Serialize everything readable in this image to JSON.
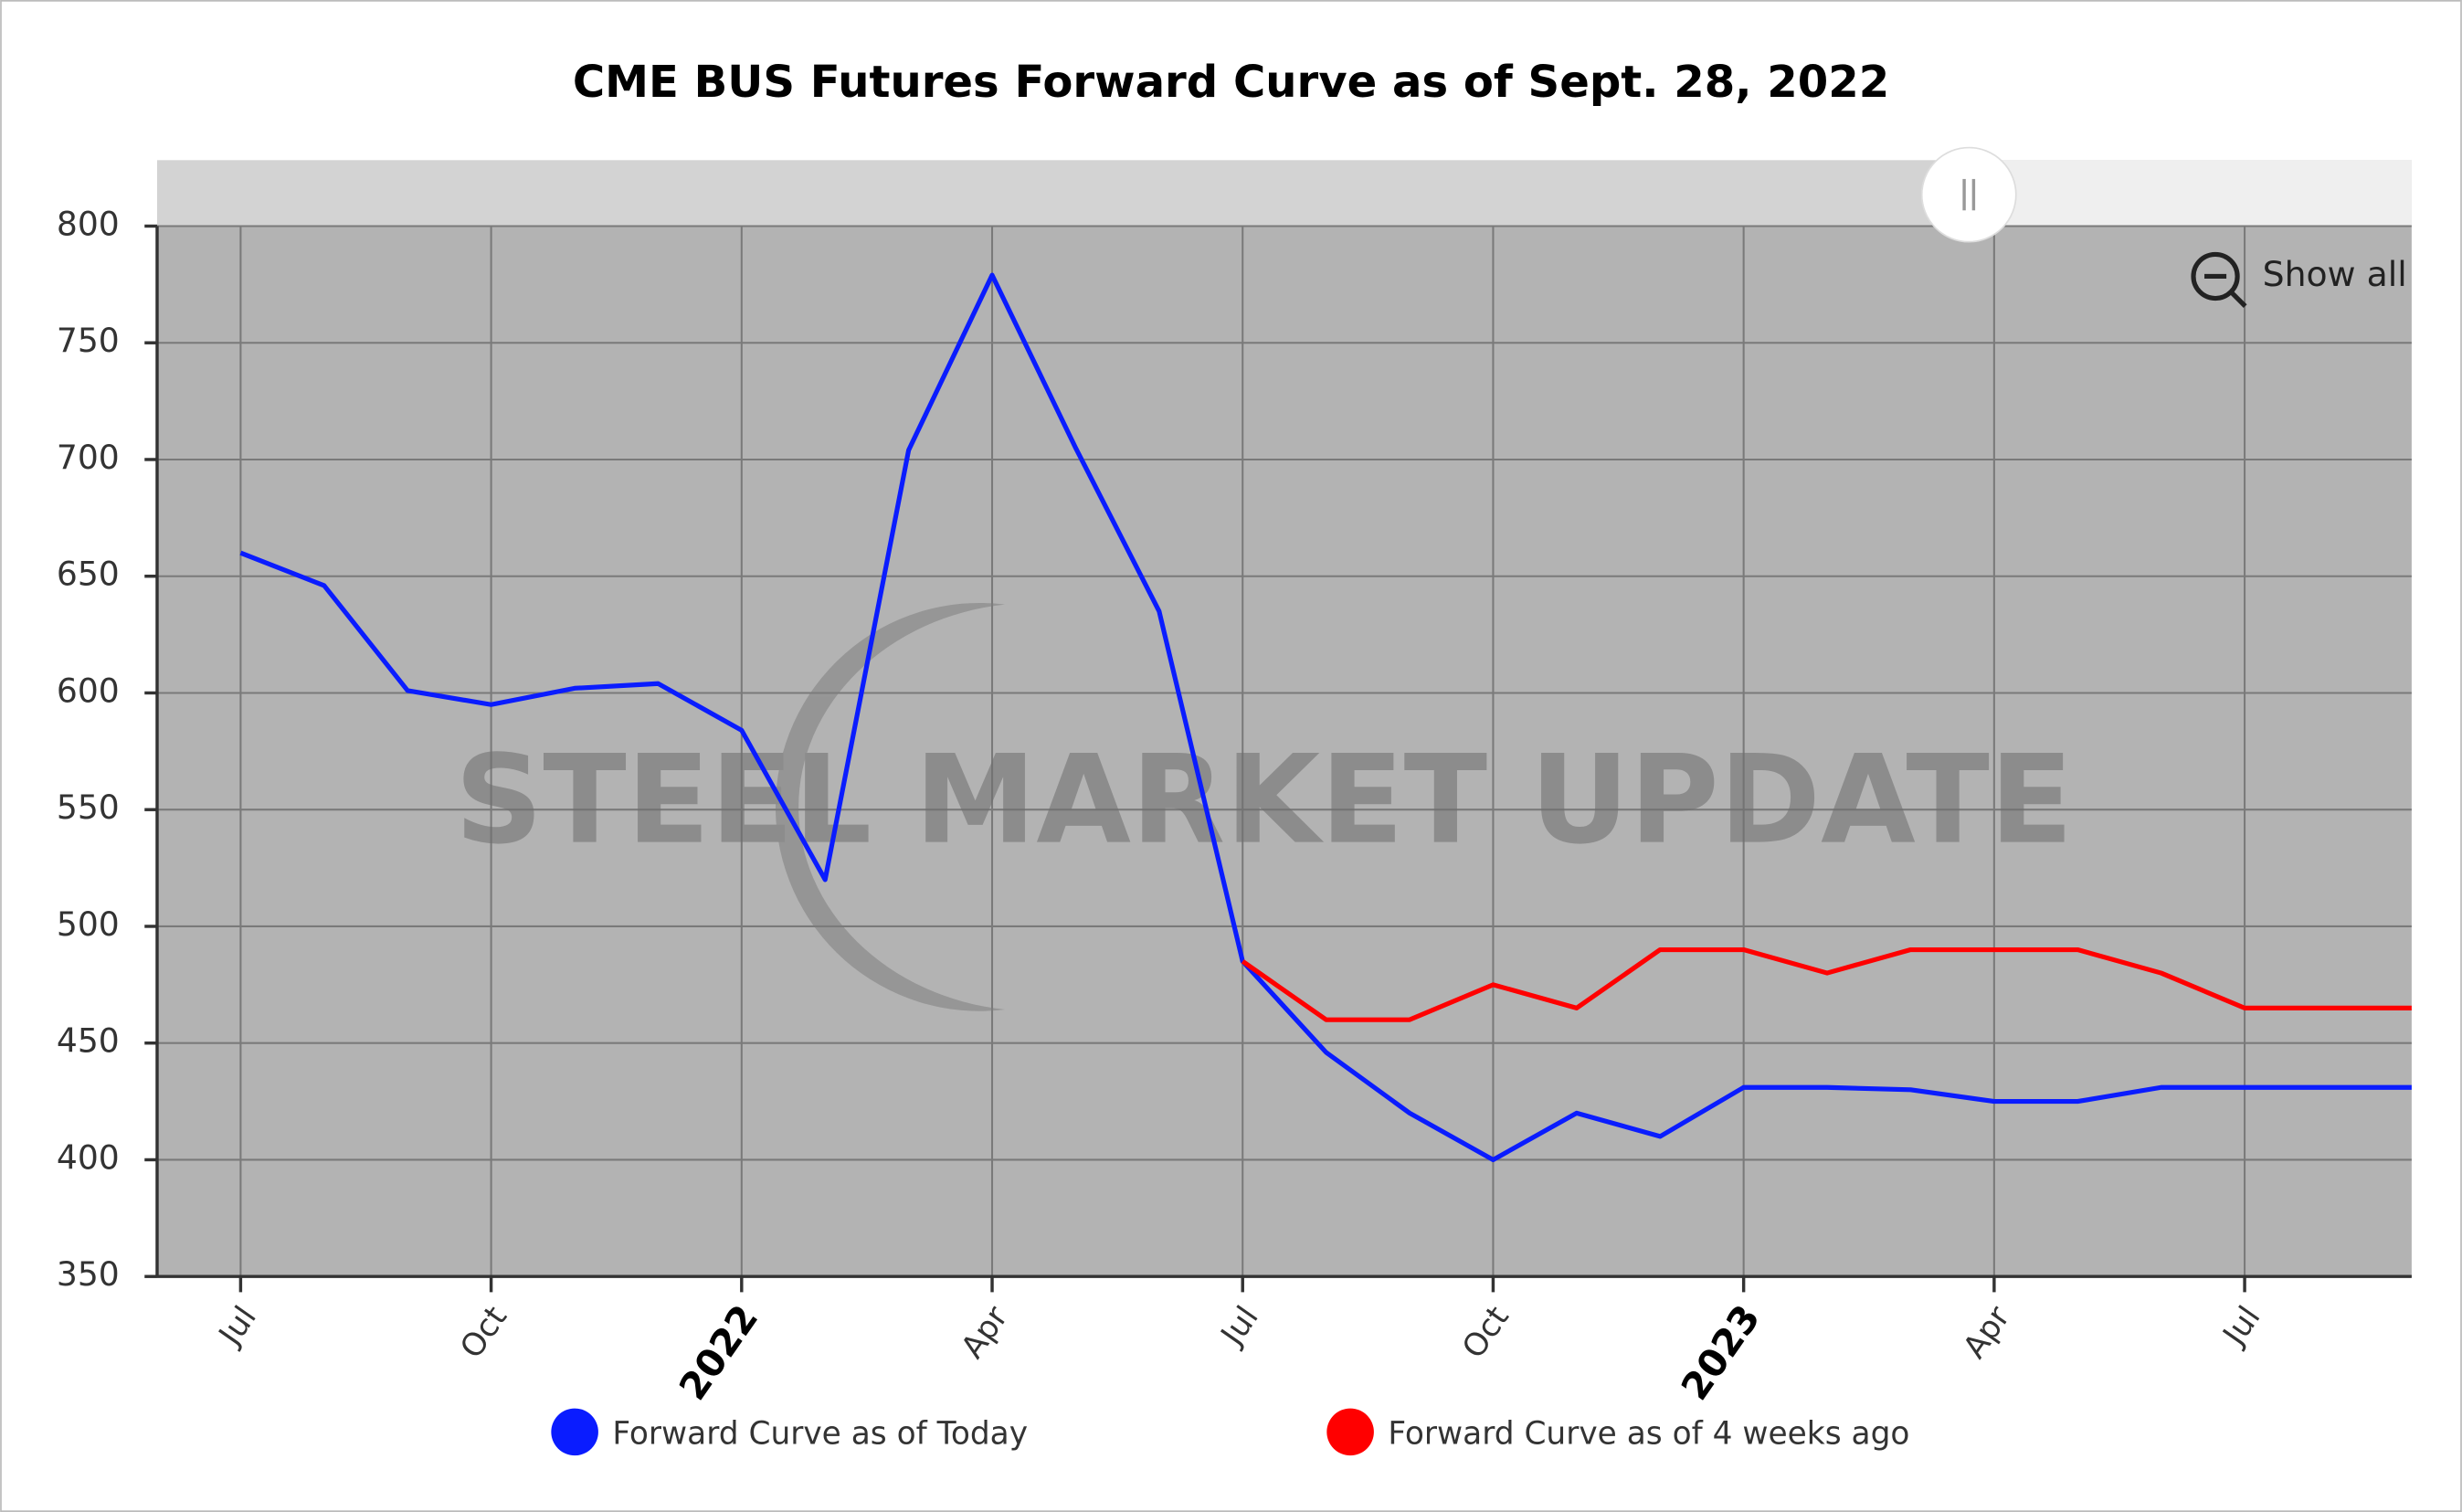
{
  "chart_data": {
    "type": "line",
    "title": "CME BUS Futures Forward Curve as of Sept. 28, 2022",
    "watermark": "STEEL MARKET UPDATE",
    "show_all_label": "Show all",
    "x": [
      "2021-07",
      "2021-08",
      "2021-09",
      "2021-10",
      "2021-11",
      "2021-12",
      "2022-01",
      "2022-02",
      "2022-03",
      "2022-04",
      "2022-05",
      "2022-06",
      "2022-07",
      "2022-08",
      "2022-09",
      "2022-10",
      "2022-11",
      "2022-12",
      "2023-01",
      "2023-02",
      "2023-03",
      "2023-04",
      "2023-05",
      "2023-06",
      "2023-07",
      "2023-08",
      "2023-09"
    ],
    "series": [
      {
        "name": "Forward Curve as of Today",
        "color": "#0a1cff",
        "values": [
          660,
          646,
          601,
          595,
          602,
          604,
          584,
          520,
          704,
          779,
          705,
          635,
          485,
          446,
          420,
          400,
          420,
          410,
          431,
          431,
          430,
          425,
          425,
          431,
          431,
          431,
          431
        ]
      },
      {
        "name": "Forward Curve as of 4 weeks ago",
        "color": "#ff0000",
        "values": [
          null,
          null,
          null,
          null,
          null,
          null,
          null,
          null,
          null,
          null,
          null,
          null,
          485,
          460,
          460,
          475,
          465,
          490,
          490,
          480,
          490,
          490,
          490,
          480,
          465,
          465,
          465
        ]
      }
    ],
    "xlim": [
      "2021-06",
      "2023-09"
    ],
    "xticks": [
      {
        "value": "2021-07",
        "label": "Jul"
      },
      {
        "value": "2021-10",
        "label": "Oct"
      },
      {
        "value": "2022-01",
        "label": "2022"
      },
      {
        "value": "2022-04",
        "label": "Apr"
      },
      {
        "value": "2022-07",
        "label": "Jul"
      },
      {
        "value": "2022-10",
        "label": "Oct"
      },
      {
        "value": "2023-01",
        "label": "2023"
      },
      {
        "value": "2023-04",
        "label": "Apr"
      },
      {
        "value": "2023-07",
        "label": "Jul"
      }
    ],
    "ylim": [
      350,
      800
    ],
    "yticks": [
      350,
      400,
      450,
      500,
      550,
      600,
      650,
      700,
      750,
      800
    ],
    "grid": true
  }
}
